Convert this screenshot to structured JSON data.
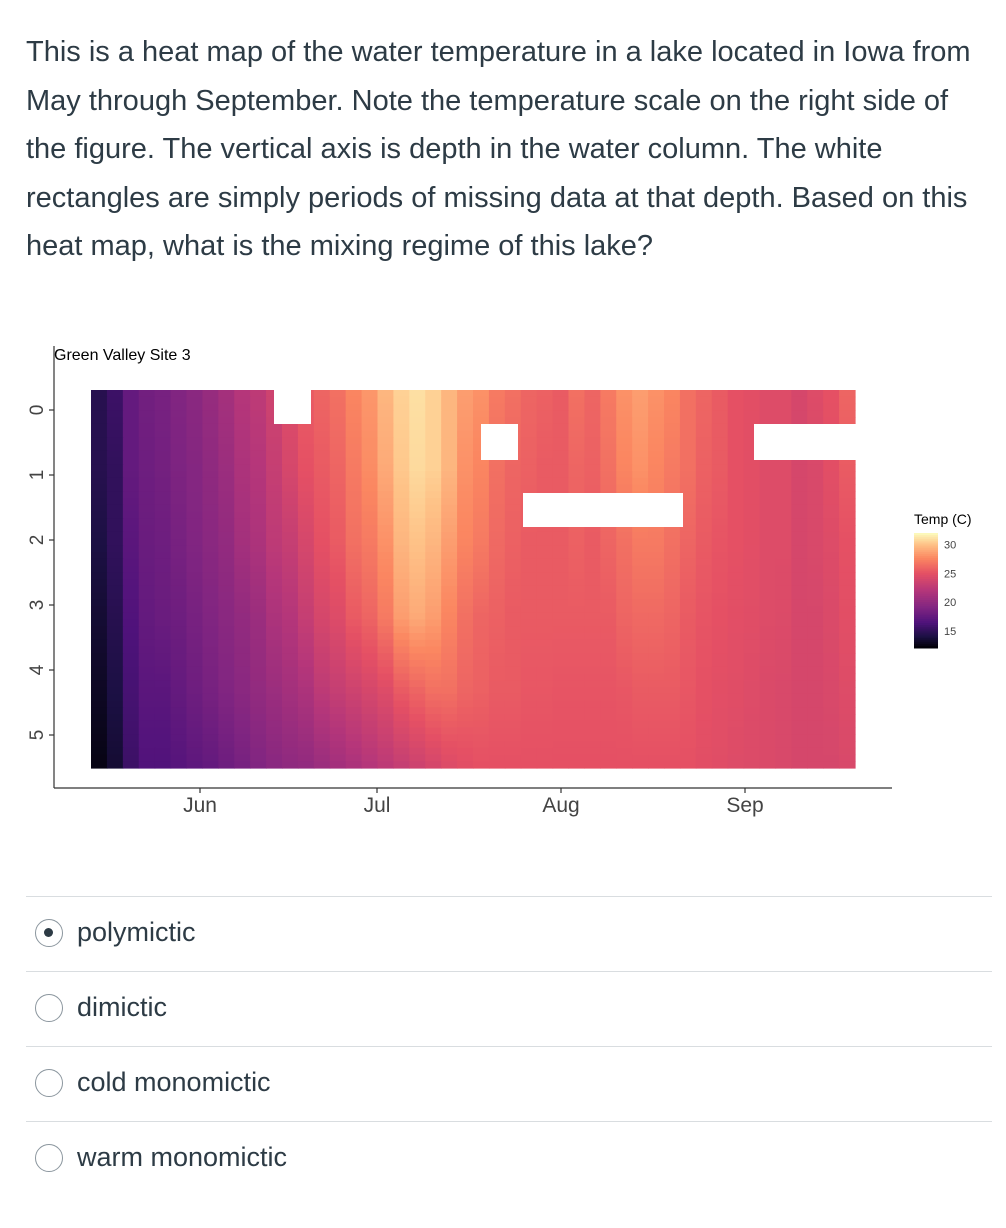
{
  "question": {
    "text": "This is a heat map of the water temperature in a lake located in Iowa from May through September. Note the temperature scale on the right side of the figure. The vertical axis is depth in the water column. The white rectangles are simply periods of missing data at that depth. Based on this heat map, what is the mixing regime of this lake?"
  },
  "chart_data": {
    "type": "heatmap",
    "title": "Green Valley Site 3",
    "xlabel": "",
    "ylabel": "",
    "x_ticks": [
      "Jun",
      "Jul",
      "Aug",
      "Sep"
    ],
    "y_ticks": [
      "0",
      "1",
      "2",
      "3",
      "4",
      "5"
    ],
    "y_reversed": true,
    "ylim": [
      0,
      5.5
    ],
    "colorbar": {
      "title": "Temp (C)",
      "ticks": [
        "30",
        "25",
        "20",
        "15"
      ],
      "range": [
        12,
        32
      ],
      "palette": "magma"
    },
    "depth_bands": [
      {
        "depth": 0.0,
        "profile": [
          14.5,
          15.5,
          17.5,
          18.2,
          18.5,
          19.0,
          19.5,
          20.2,
          21.0,
          22.0,
          22.5,
          23.5,
          24.5,
          25.5,
          26.0,
          26.5,
          27.5,
          28.2,
          29.5,
          30.5,
          31.0,
          30.5,
          29.5,
          28.5,
          28.0,
          27.0,
          26.5,
          26.0,
          25.8,
          25.5,
          26.5,
          26.0,
          27.0,
          28.0,
          28.5,
          28.0,
          27.5,
          26.5,
          26.0,
          25.5,
          25.0,
          24.8,
          24.5,
          24.5,
          24.0,
          24.5,
          25.0,
          26.0
        ]
      },
      {
        "depth": 1.0,
        "profile": [
          14.5,
          15.0,
          17.5,
          18.0,
          18.3,
          18.8,
          19.2,
          19.8,
          20.5,
          21.5,
          22.0,
          23.0,
          24.0,
          25.0,
          25.5,
          26.0,
          27.0,
          27.8,
          29.0,
          30.2,
          30.8,
          30.5,
          29.5,
          28.0,
          27.5,
          26.5,
          26.0,
          25.8,
          25.5,
          25.5,
          26.0,
          25.8,
          26.5,
          27.5,
          28.0,
          27.5,
          27.0,
          26.5,
          25.8,
          25.5,
          25.0,
          24.8,
          24.5,
          24.5,
          24.0,
          24.2,
          24.8,
          25.5
        ]
      },
      {
        "depth": 2.0,
        "profile": [
          14.0,
          15.0,
          17.0,
          17.8,
          18.0,
          18.5,
          19.0,
          19.5,
          20.0,
          21.0,
          21.5,
          22.5,
          23.0,
          24.0,
          25.0,
          25.5,
          26.5,
          27.0,
          28.0,
          29.5,
          30.0,
          29.5,
          28.5,
          27.5,
          27.0,
          26.2,
          25.8,
          25.5,
          25.5,
          25.5,
          25.8,
          25.5,
          26.0,
          26.5,
          27.0,
          27.0,
          26.5,
          26.0,
          25.5,
          25.2,
          25.0,
          24.8,
          24.5,
          24.5,
          24.0,
          24.2,
          24.5,
          25.0
        ]
      },
      {
        "depth": 3.0,
        "profile": [
          13.5,
          14.5,
          16.5,
          17.5,
          17.8,
          18.0,
          18.5,
          19.0,
          19.5,
          20.0,
          20.5,
          21.5,
          22.0,
          23.0,
          24.0,
          24.5,
          25.5,
          26.0,
          27.0,
          28.5,
          29.0,
          28.5,
          27.5,
          26.5,
          26.0,
          25.8,
          25.5,
          25.5,
          25.5,
          25.5,
          25.5,
          25.5,
          25.5,
          26.0,
          26.2,
          26.2,
          26.0,
          25.5,
          25.2,
          25.0,
          24.8,
          24.7,
          24.5,
          24.4,
          24.0,
          24.0,
          24.3,
          24.8
        ]
      },
      {
        "depth": 4.0,
        "profile": [
          13.0,
          14.0,
          16.0,
          17.0,
          17.0,
          17.5,
          18.0,
          18.5,
          19.0,
          19.5,
          20.0,
          20.5,
          21.0,
          21.5,
          22.5,
          23.0,
          23.5,
          24.0,
          24.5,
          25.5,
          26.0,
          26.5,
          26.5,
          26.0,
          25.8,
          25.5,
          25.5,
          25.3,
          25.3,
          25.2,
          25.2,
          25.2,
          25.2,
          25.3,
          25.5,
          25.5,
          25.5,
          25.3,
          25.0,
          24.8,
          24.7,
          24.5,
          24.3,
          24.2,
          24.0,
          24.0,
          24.2,
          24.5
        ]
      },
      {
        "depth": 5.0,
        "profile": [
          12.5,
          13.5,
          15.5,
          16.5,
          16.5,
          16.8,
          17.2,
          17.5,
          18.0,
          18.5,
          19.0,
          19.5,
          19.8,
          20.0,
          20.5,
          21.0,
          21.5,
          22.0,
          22.5,
          23.0,
          23.5,
          24.0,
          24.5,
          24.8,
          25.0,
          25.0,
          25.0,
          25.0,
          25.0,
          25.0,
          25.0,
          25.0,
          25.0,
          25.0,
          25.0,
          25.0,
          25.0,
          25.0,
          24.8,
          24.7,
          24.5,
          24.4,
          24.3,
          24.2,
          24.0,
          24.0,
          24.0,
          24.2
        ]
      }
    ],
    "missing_data_note": "white rectangles"
  },
  "answers": {
    "options": [
      {
        "label": "polymictic",
        "selected": true
      },
      {
        "label": "dimictic",
        "selected": false
      },
      {
        "label": "cold monomictic",
        "selected": false
      },
      {
        "label": "warm monomictic",
        "selected": false
      }
    ]
  }
}
